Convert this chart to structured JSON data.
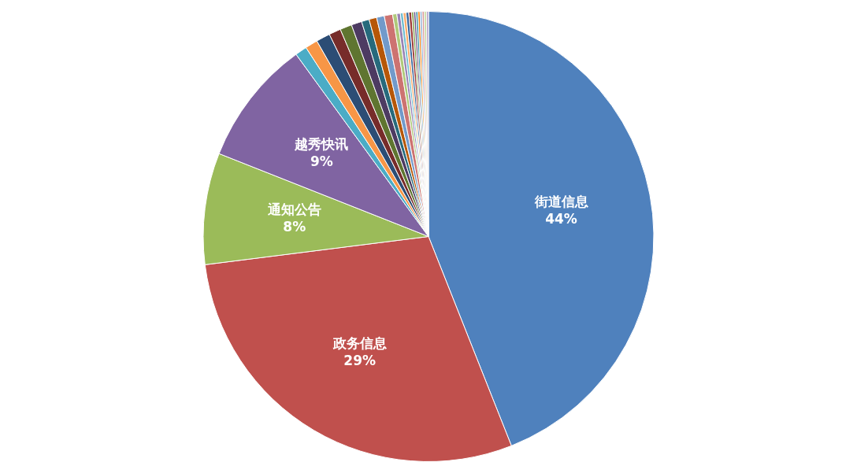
{
  "chart_data": {
    "type": "pie",
    "legend": false,
    "categories": [
      "街道信息",
      "政务信息",
      "通知公告",
      "越秀快讯",
      null,
      null,
      null,
      null,
      null,
      null,
      null,
      null,
      null,
      null,
      null,
      null,
      null,
      null,
      null,
      null,
      null,
      null,
      null,
      null,
      null,
      null,
      null,
      null
    ],
    "values": [
      44,
      29,
      8,
      9,
      0.85,
      0.9,
      1.0,
      0.85,
      0.85,
      0.75,
      0.55,
      0.55,
      0.55,
      0.6,
      0.3,
      0.25,
      0.2,
      0.2,
      0.2,
      0.2,
      0.15,
      0.15,
      0.15,
      0.15,
      0.15,
      0.15,
      0.15,
      0.15
    ],
    "value_labels": [
      "44%",
      "29%",
      "8%",
      "9%",
      null,
      null,
      null,
      null,
      null,
      null,
      null,
      null,
      null,
      null,
      null,
      null,
      null,
      null,
      null,
      null,
      null,
      null,
      null,
      null,
      null,
      null,
      null,
      null
    ],
    "colors": [
      "#4f81bd",
      "#c0504d",
      "#9bbb59",
      "#8064a2",
      "#4bacc6",
      "#f79646",
      "#2c4d75",
      "#772c2a",
      "#5f7530",
      "#4d3b62",
      "#276a7c",
      "#b65708",
      "#729aca",
      "#cd7371",
      "#afc97a",
      "#9983b5",
      "#6fbdd1",
      "#f9ab6b",
      "#3a679c",
      "#9d3b38",
      "#7e9c40",
      "#664f83",
      "#358ea6",
      "#f07f09",
      "#95b3d7",
      "#d99694",
      "#c3d69b",
      "#b3a2c7"
    ]
  }
}
